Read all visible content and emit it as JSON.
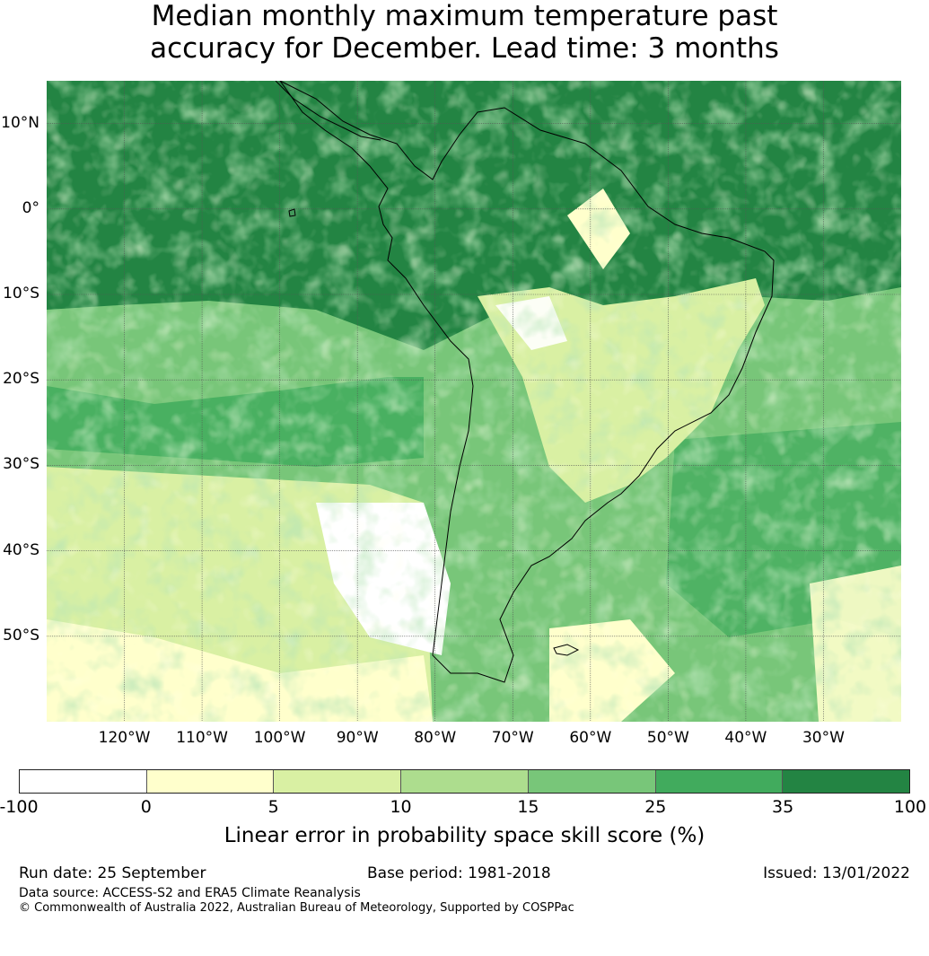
{
  "title": {
    "line1": "Median monthly maximum temperature past",
    "line2": "accuracy for December. Lead time: 3 months"
  },
  "map": {
    "lon_range": [
      -130,
      -20
    ],
    "lat_range": [
      -60,
      15
    ],
    "lat_ticks": [
      {
        "value": 10,
        "label": "10°N"
      },
      {
        "value": 0,
        "label": "0°"
      },
      {
        "value": -10,
        "label": "10°S"
      },
      {
        "value": -20,
        "label": "20°S"
      },
      {
        "value": -30,
        "label": "30°S"
      },
      {
        "value": -40,
        "label": "40°S"
      },
      {
        "value": -50,
        "label": "50°S"
      }
    ],
    "lon_ticks": [
      {
        "value": -120,
        "label": "120°W"
      },
      {
        "value": -110,
        "label": "110°W"
      },
      {
        "value": -100,
        "label": "100°W"
      },
      {
        "value": -90,
        "label": "90°W"
      },
      {
        "value": -80,
        "label": "80°W"
      },
      {
        "value": -70,
        "label": "70°W"
      },
      {
        "value": -60,
        "label": "60°W"
      },
      {
        "value": -50,
        "label": "50°W"
      },
      {
        "value": -40,
        "label": "40°W"
      },
      {
        "value": -30,
        "label": "30°W"
      }
    ]
  },
  "colorbar": {
    "bounds": [
      "-100",
      "0",
      "5",
      "10",
      "15",
      "25",
      "35",
      "100"
    ],
    "colors": [
      "#ffffff",
      "#ffffcc",
      "#d9f0a3",
      "#addd8e",
      "#78c679",
      "#41ab5d",
      "#238443"
    ],
    "label": "Linear error in probability space skill score (%)"
  },
  "footer": {
    "run_date": "Run date: 25 September",
    "base_period": "Base period: 1981-2018",
    "issued": "Issued: 13/01/2022",
    "data_source": "Data source: ACCESS-S2 and ERA5 Climate Reanalysis",
    "copyright": "© Commonwealth of Australia 2022, Australian Bureau of Meteorology, Supported by COSPPac"
  }
}
